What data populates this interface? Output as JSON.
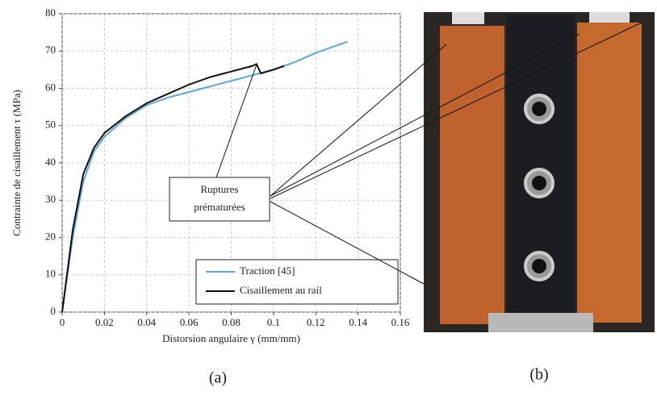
{
  "chart_data": {
    "type": "line",
    "xlabel": "Distorsion angulaire γ (mm/mm)",
    "ylabel": "Contrainte de cisaillement τ (MPa)",
    "xlim": [
      0,
      0.16
    ],
    "xticks": [
      0,
      0.02,
      0.04,
      0.06,
      0.08,
      0.1,
      0.12,
      0.14,
      0.16
    ],
    "ylim": [
      0,
      80
    ],
    "yticks": [
      0,
      10,
      20,
      30,
      40,
      50,
      60,
      70,
      80
    ],
    "grid": true,
    "legend": "lower right",
    "annotation": [
      "Ruptures",
      "prématurées"
    ],
    "series": [
      {
        "name": "Traction [45]",
        "color": "#5aa7d8",
        "x": [
          0,
          0.005,
          0.01,
          0.015,
          0.02,
          0.03,
          0.04,
          0.05,
          0.06,
          0.07,
          0.08,
          0.09,
          0.1,
          0.11,
          0.12,
          0.135
        ],
        "values": [
          0,
          20,
          35,
          43,
          47,
          52,
          55.5,
          57.5,
          59,
          60.5,
          62,
          63.5,
          65,
          67,
          69.5,
          72.5
        ]
      },
      {
        "name": "Cisaillement au rail",
        "color": "#111111",
        "x": [
          0,
          0.005,
          0.01,
          0.015,
          0.02,
          0.03,
          0.04,
          0.05,
          0.06,
          0.07,
          0.08,
          0.09,
          0.092,
          0.094,
          0.1,
          0.105
        ],
        "values": [
          0,
          22,
          37,
          44,
          48,
          52.5,
          56,
          58.5,
          61,
          63,
          64.5,
          66,
          66.5,
          64,
          65,
          66
        ]
      }
    ]
  },
  "captions": [
    "(a)",
    "(b)"
  ]
}
